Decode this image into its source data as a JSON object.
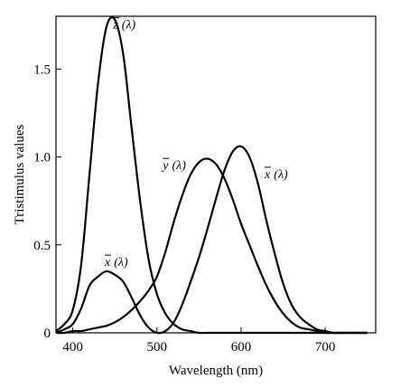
{
  "chart_data": {
    "type": "line",
    "title": "",
    "xlabel": "Wavelength (nm)",
    "ylabel": "Tristimulus values",
    "xlim": [
      380,
      760
    ],
    "ylim": [
      0,
      1.8
    ],
    "x_ticks": [
      400,
      500,
      600,
      700
    ],
    "y_ticks": [
      0,
      0.5,
      1.0,
      1.5
    ],
    "x_tick_labels": [
      "400",
      "500",
      "600",
      "700"
    ],
    "y_tick_labels": [
      "0",
      "0.5",
      "1.0",
      "1.5"
    ],
    "grid": false,
    "legend": "none",
    "x": [
      380,
      390,
      400,
      410,
      420,
      430,
      440,
      450,
      460,
      470,
      480,
      490,
      500,
      510,
      520,
      530,
      540,
      550,
      560,
      570,
      580,
      590,
      600,
      610,
      620,
      630,
      640,
      650,
      660,
      670,
      680,
      690,
      700,
      710,
      720,
      730,
      740,
      750
    ],
    "series": [
      {
        "name": "z̄ (λ)",
        "values": [
          0.01,
          0.05,
          0.13,
          0.39,
          0.91,
          1.42,
          1.74,
          1.78,
          1.58,
          1.16,
          0.75,
          0.42,
          0.22,
          0.11,
          0.05,
          0.02,
          0.01,
          0.0,
          0.0,
          0.0,
          0.0,
          0.0,
          0.0,
          0.0,
          0.0,
          0.0,
          0.0,
          0.0,
          0.0,
          0.0,
          0.0,
          0.0,
          0.0,
          0.0,
          0.0,
          0.0,
          0.0,
          0.0
        ]
      },
      {
        "name": "ȳ (λ)",
        "values": [
          0.0,
          0.0,
          0.01,
          0.01,
          0.02,
          0.03,
          0.04,
          0.06,
          0.09,
          0.13,
          0.18,
          0.24,
          0.32,
          0.46,
          0.63,
          0.78,
          0.9,
          0.97,
          0.99,
          0.96,
          0.88,
          0.76,
          0.62,
          0.5,
          0.38,
          0.27,
          0.18,
          0.11,
          0.06,
          0.03,
          0.02,
          0.01,
          0.0,
          0.0,
          0.0,
          0.0,
          0.0,
          0.0
        ]
      },
      {
        "name": "x̄ (λ)",
        "values": [
          0.0,
          0.02,
          0.05,
          0.14,
          0.27,
          0.32,
          0.35,
          0.33,
          0.29,
          0.2,
          0.1,
          0.03,
          0.0,
          0.01,
          0.06,
          0.16,
          0.29,
          0.43,
          0.59,
          0.76,
          0.92,
          1.03,
          1.06,
          1.0,
          0.85,
          0.64,
          0.45,
          0.28,
          0.16,
          0.09,
          0.05,
          0.02,
          0.01,
          0.0,
          0.0,
          0.0,
          0.0,
          0.0
        ]
      }
    ],
    "annotations": [
      {
        "text_prefix": "z",
        "text_suffix": "(λ)",
        "x": 448,
        "y": 1.73
      },
      {
        "text_prefix": "y",
        "text_suffix": "(λ)",
        "x": 507,
        "y": 0.93
      },
      {
        "text_prefix": "x",
        "text_suffix": "(λ)",
        "x": 628,
        "y": 0.88
      },
      {
        "text_prefix": "x",
        "text_suffix": "(λ)",
        "x": 438,
        "y": 0.38
      }
    ]
  }
}
